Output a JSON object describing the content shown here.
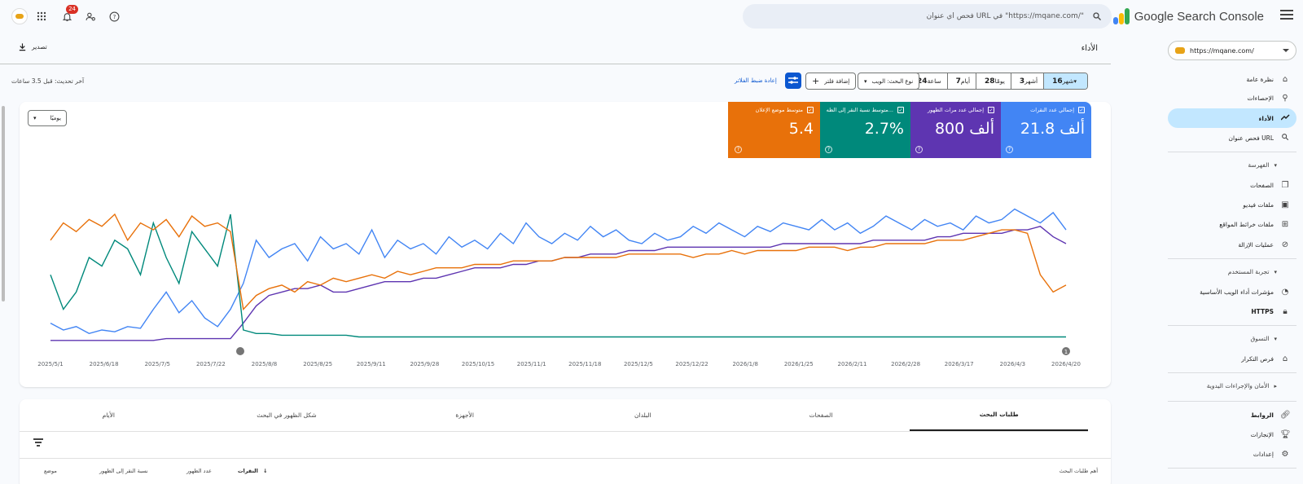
{
  "app": {
    "title": "Google Search Console",
    "search_placeholder": "فحص أي عنوان URL في \"https://mqane.com/\"",
    "notifications_count": "24",
    "property": "https://mqane.com/"
  },
  "sidebar": {
    "items": [
      {
        "label": "نظرة عامة",
        "icon": "home-icon"
      },
      {
        "label": "الإحصاءات",
        "icon": "pin-icon"
      },
      {
        "label": "الأداء",
        "icon": "trend-icon",
        "active": true
      },
      {
        "label": "فحص عنوان URL",
        "icon": "search-icon"
      }
    ],
    "sections": [
      {
        "label": "الفهرسة",
        "items": [
          {
            "label": "الصفحات",
            "icon": "pages-icon"
          },
          {
            "label": "ملفات فيديو",
            "icon": "video-icon"
          },
          {
            "label": "ملفات خرائط المواقع",
            "icon": "sitemap-icon"
          },
          {
            "label": "عمليات الإزالة",
            "icon": "hide-icon"
          }
        ]
      },
      {
        "label": "تجربة المستخدم",
        "items": [
          {
            "label": "مؤشرات أداء الويب الأساسية",
            "icon": "gauge-icon"
          },
          {
            "label": "HTTPS",
            "icon": "lock-icon"
          }
        ]
      },
      {
        "label": "التسوق",
        "items": [
          {
            "label": "فرص التكرار",
            "icon": "tag-icon"
          }
        ]
      },
      {
        "label": "الأمان والإجراءات اليدوية",
        "items": []
      }
    ],
    "footer_items": [
      {
        "label": "الروابط",
        "icon": "link-icon"
      },
      {
        "label": "الإنجازات",
        "icon": "trophy-icon"
      },
      {
        "label": "إعدادات",
        "icon": "gear-icon"
      }
    ]
  },
  "header": {
    "title": "الأداء",
    "export_label": "تصدير",
    "last_update": "آخر تحديث: قبل 3.5 ساعات"
  },
  "filters": {
    "date_ranges": [
      {
        "num": "24",
        "unit": "ساعة"
      },
      {
        "num": "7",
        "unit": "أيام"
      },
      {
        "num": "28",
        "unit": "يومًا"
      },
      {
        "num": "3",
        "unit": "أشهر"
      },
      {
        "num": "16",
        "unit": "شهر",
        "selected": true
      }
    ],
    "search_type": "نوع البحث: الويب",
    "add_filter": "إضافة فلتر",
    "reset": "إعادة ضبط الفلاتر"
  },
  "metrics": [
    {
      "label": "إجمالي عدد النقرات",
      "value": "21.8 ألف",
      "color": "#4285f4"
    },
    {
      "label": "إجمالي عدد مرات الظهور",
      "value": "800 ألف",
      "color": "#5e35b1"
    },
    {
      "label": "متوسط نسبة النقر إلى الظه...",
      "value": "2.7%",
      "color": "#00897b"
    },
    {
      "label": "متوسط موضع الإعلان",
      "value": "5.4",
      "color": "#e8710a"
    }
  ],
  "granularity": "يوميًا",
  "chart_data": {
    "type": "line",
    "x_ticks": [
      "2025/5/1",
      "2025/6/18",
      "2025/7/5",
      "2025/7/22",
      "2025/8/8",
      "2025/8/25",
      "2025/9/11",
      "2025/9/28",
      "2025/10/15",
      "2025/11/1",
      "2025/11/18",
      "2025/12/5",
      "2025/12/22",
      "2026/1/8",
      "2026/1/25",
      "2026/2/11",
      "2026/2/28",
      "2026/3/17",
      "2026/4/3",
      "2026/4/20"
    ],
    "annotations": [
      "",
      "1"
    ],
    "series_colors": [
      "#4285f4",
      "#5e35b1",
      "#00897b",
      "#e8710a"
    ],
    "series": [
      {
        "name": "إجمالي عدد النقرات",
        "values": [
          12,
          8,
          10,
          6,
          8,
          7,
          10,
          9,
          20,
          30,
          18,
          25,
          15,
          10,
          20,
          35,
          60,
          50,
          55,
          58,
          48,
          62,
          55,
          58,
          52,
          66,
          50,
          60,
          55,
          58,
          52,
          62,
          56,
          60,
          55,
          64,
          58,
          70,
          62,
          58,
          64,
          60,
          68,
          62,
          66,
          60,
          58,
          64,
          60,
          62,
          68,
          64,
          70,
          66,
          62,
          68,
          65,
          70,
          68,
          66,
          72,
          66,
          70,
          64,
          68,
          74,
          70,
          66,
          72,
          68,
          70,
          66,
          74,
          70,
          72,
          78,
          74,
          70,
          76,
          66
        ]
      },
      {
        "name": "إجمالي عدد مرات الظهور",
        "values": [
          2,
          2,
          2,
          2,
          2,
          2,
          2,
          2,
          2,
          3,
          3,
          3,
          3,
          3,
          3,
          12,
          22,
          28,
          30,
          32,
          32,
          34,
          30,
          30,
          32,
          34,
          36,
          36,
          36,
          38,
          38,
          40,
          42,
          44,
          44,
          44,
          46,
          46,
          48,
          48,
          50,
          50,
          52,
          52,
          52,
          54,
          54,
          54,
          56,
          56,
          56,
          56,
          56,
          56,
          56,
          56,
          56,
          58,
          58,
          58,
          58,
          58,
          58,
          58,
          60,
          60,
          60,
          60,
          60,
          62,
          62,
          64,
          64,
          64,
          64,
          66,
          66,
          68,
          62,
          58
        ]
      },
      {
        "name": "متوسط نسبة النقر إلى الظه...",
        "values": [
          40,
          20,
          30,
          50,
          45,
          60,
          55,
          40,
          70,
          50,
          35,
          65,
          55,
          45,
          75,
          8,
          6,
          6,
          5,
          5,
          5,
          5,
          5,
          5,
          4,
          4,
          4,
          4,
          4,
          4,
          4,
          4,
          4,
          4,
          4,
          4,
          4,
          4,
          4,
          4,
          4,
          4,
          4,
          4,
          4,
          4,
          4,
          4,
          4,
          4,
          4,
          4,
          4,
          4,
          4,
          4,
          4,
          4,
          4,
          4,
          4,
          4,
          4,
          4,
          4,
          4,
          4,
          4,
          4,
          4,
          4,
          4,
          4,
          4,
          4,
          4,
          4,
          4,
          4,
          4
        ]
      },
      {
        "name": "متوسط موضع الإعلان",
        "values": [
          60,
          70,
          65,
          72,
          68,
          75,
          60,
          70,
          66,
          72,
          62,
          74,
          68,
          70,
          65,
          20,
          28,
          32,
          34,
          30,
          36,
          34,
          38,
          36,
          38,
          40,
          38,
          42,
          40,
          42,
          44,
          44,
          44,
          46,
          46,
          46,
          48,
          48,
          48,
          48,
          50,
          50,
          50,
          50,
          50,
          52,
          52,
          52,
          52,
          52,
          50,
          52,
          52,
          54,
          52,
          54,
          54,
          54,
          54,
          56,
          56,
          56,
          54,
          56,
          56,
          58,
          58,
          58,
          58,
          60,
          60,
          60,
          62,
          64,
          66,
          66,
          64,
          40,
          30,
          34
        ]
      }
    ]
  },
  "tabs": [
    "طلبات البحث",
    "الصفحات",
    "البلدان",
    "الأجهزة",
    "شكل الظهور في البحث",
    "الأيام"
  ],
  "table": {
    "headers": [
      "أهم طلبات البحث",
      "النقرات",
      "عدد الظهور",
      "نسبة النقر إلى الظهور",
      "موضع"
    ]
  }
}
